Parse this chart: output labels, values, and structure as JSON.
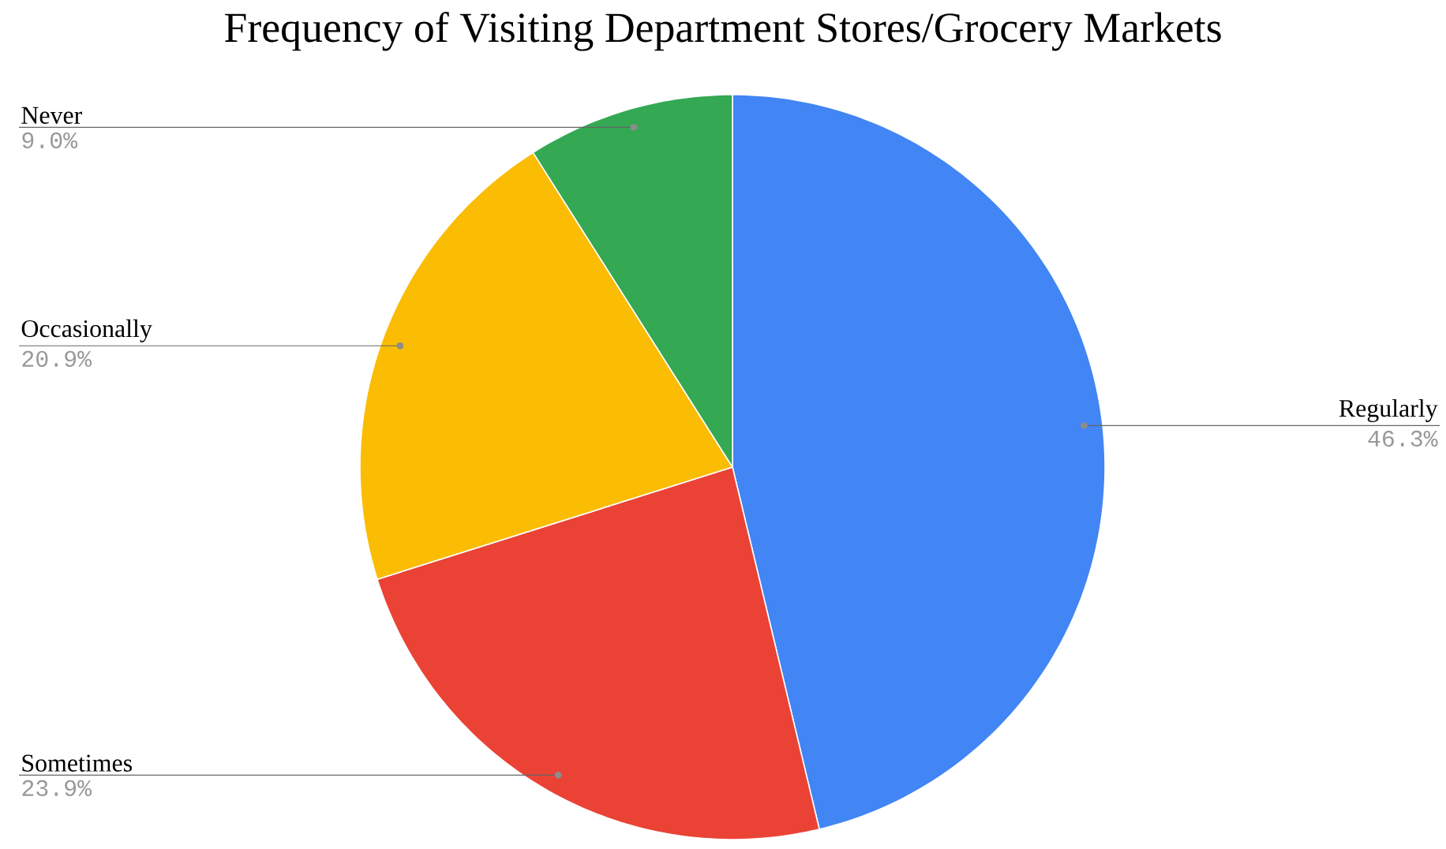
{
  "chart_data": {
    "type": "pie",
    "title": "Frequency of Visiting Department Stores/Grocery Markets",
    "categories": [
      "Regularly",
      "Sometimes",
      "Occasionally",
      "Never"
    ],
    "values": [
      46.3,
      23.9,
      20.9,
      9.0
    ],
    "colors": [
      "#4285f4",
      "#ea4335",
      "#fbbc04",
      "#34a853"
    ],
    "value_labels": [
      "46.3%",
      "23.9%",
      "20.9%",
      "9.0%"
    ]
  }
}
